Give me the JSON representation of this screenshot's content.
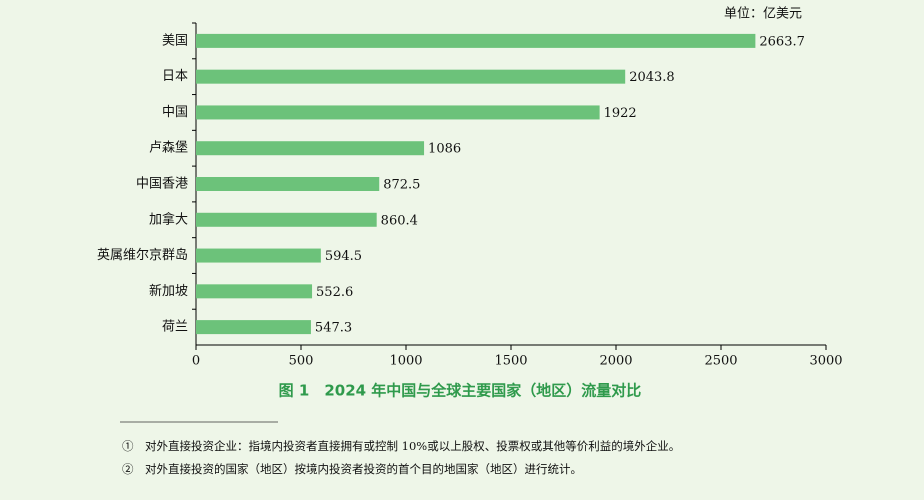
{
  "chart_data": {
    "type": "barh",
    "title": "图 1　2024 年中国与全球主要国家（地区）流量对比",
    "unit": "单位：亿美元",
    "categories": [
      "美国",
      "日本",
      "中国",
      "卢森堡",
      "中国香港",
      "加拿大",
      "英属维尔京群岛",
      "新加坡",
      "荷兰"
    ],
    "values": [
      2663.7,
      2043.8,
      1922,
      1086,
      872.5,
      860.4,
      594.5,
      552.6,
      547.3
    ],
    "color": "#6cc27a",
    "xlim": [
      0,
      3000
    ],
    "xticks": [
      0,
      500,
      1000,
      1500,
      2000,
      2500,
      3000
    ]
  },
  "footnotes": [
    "①　对外直接投资企业：指境内投资者直接拥有或控制 10%或以上股权、投票权或其他等价利益的境外企业。",
    "②　对外直接投资的国家（地区）按境内投资者投资的首个目的地国家（地区）进行统计。"
  ]
}
